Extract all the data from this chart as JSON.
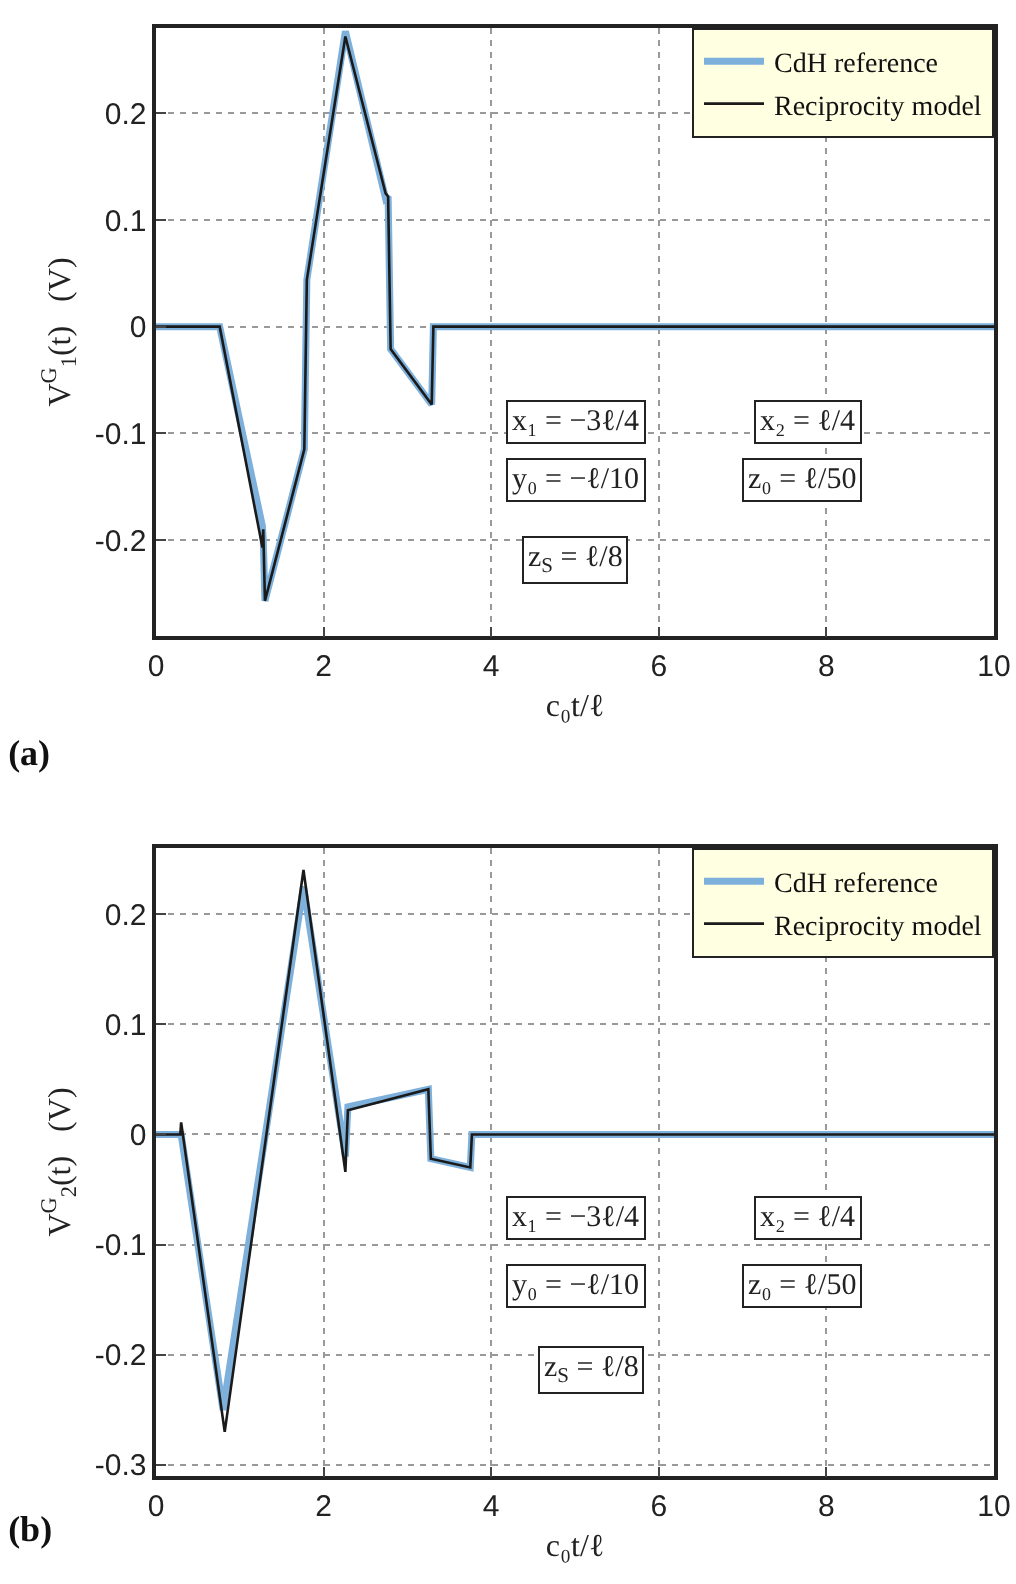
{
  "chart_data": [
    {
      "type": "line",
      "title": "(a)",
      "xlabel": "c₀t/ℓ",
      "ylabel": "V$^{G}$$_{1}$(t)   (V)",
      "xlim": [
        0,
        10
      ],
      "xticks": [
        0,
        2,
        4,
        6,
        8,
        10
      ],
      "ylim": [
        -0.29,
        0.28
      ],
      "yticks": [
        -0.2,
        -0.1,
        0,
        0.1,
        0.2
      ],
      "grid": true,
      "legend": "top right",
      "line_style": "solid",
      "marker": "none",
      "series": [
        {
          "name": "CdH reference",
          "color": "#7eb0dc",
          "x": [
            0,
            0.76,
            1.27,
            1.28,
            1.3,
            1.77,
            1.8,
            2.26,
            2.74,
            2.77,
            2.8,
            3.29,
            3.31,
            10
          ],
          "values": [
            0,
            0,
            -0.187,
            -0.2,
            -0.257,
            -0.115,
            0.044,
            0.277,
            0.12,
            0.122,
            -0.021,
            -0.073,
            0,
            0
          ]
        },
        {
          "name": "Reciprocity model",
          "color": "#1a1a1a",
          "x": [
            0,
            0.76,
            1.27,
            1.28,
            1.3,
            1.77,
            1.8,
            2.26,
            2.74,
            2.77,
            2.8,
            3.29,
            3.31,
            10
          ],
          "values": [
            0,
            0,
            -0.207,
            -0.19,
            -0.257,
            -0.115,
            0.044,
            0.272,
            0.125,
            0.122,
            -0.021,
            -0.073,
            0,
            0
          ]
        }
      ],
      "annotations": [
        "x₁ = −3ℓ/4",
        "x₂ = ℓ/4",
        "y₀ = −ℓ/10",
        "z₀ = ℓ/50",
        "z$_{S}$ = ℓ/8"
      ]
    },
    {
      "type": "line",
      "title": "(b)",
      "xlabel": "c₀t/ℓ",
      "ylabel": "V$^{G}$$_{2}$(t)   (V)",
      "xlim": [
        0,
        10
      ],
      "xticks": [
        0,
        2,
        4,
        6,
        8,
        10
      ],
      "ylim": [
        -0.31,
        0.26
      ],
      "yticks": [
        -0.3,
        -0.2,
        -0.1,
        0,
        0.1,
        0.2
      ],
      "grid": true,
      "legend": "top right",
      "line_style": "solid",
      "marker": "none",
      "series": [
        {
          "name": "CdH reference",
          "color": "#7eb0dc",
          "x": [
            0,
            0.29,
            0.3,
            0.8,
            1.76,
            2.26,
            2.29,
            3.25,
            3.28,
            3.75,
            3.77,
            10
          ],
          "values": [
            0,
            0,
            0,
            -0.25,
            0.225,
            -0.02,
            0.025,
            0.041,
            -0.022,
            -0.03,
            0,
            0
          ]
        },
        {
          "name": "Reciprocity model",
          "color": "#1a1a1a",
          "x": [
            0,
            0.29,
            0.3,
            0.82,
            1.76,
            2.26,
            2.29,
            3.25,
            3.28,
            3.75,
            3.77,
            10
          ],
          "values": [
            0,
            0,
            0.011,
            -0.27,
            0.24,
            -0.034,
            0.022,
            0.041,
            -0.022,
            -0.03,
            0,
            0
          ]
        }
      ],
      "annotations": [
        "x₁ = −3ℓ/4",
        "x₂ = ℓ/4",
        "y₀ = −ℓ/10",
        "z₀ = ℓ/50",
        "z$_{S}$ = ℓ/8"
      ]
    }
  ]
}
